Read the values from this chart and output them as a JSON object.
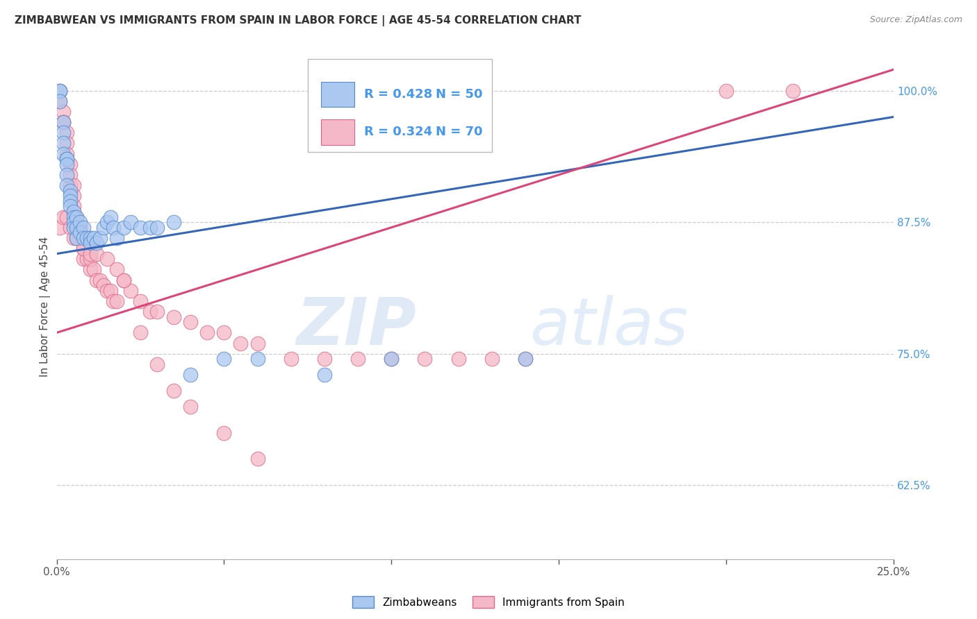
{
  "title": "ZIMBABWEAN VS IMMIGRANTS FROM SPAIN IN LABOR FORCE | AGE 45-54 CORRELATION CHART",
  "source": "Source: ZipAtlas.com",
  "ylabel": "In Labor Force | Age 45-54",
  "xlim": [
    0.0,
    0.25
  ],
  "ylim": [
    0.555,
    1.035
  ],
  "xticks": [
    0.0,
    0.05,
    0.1,
    0.15,
    0.2,
    0.25
  ],
  "yticks_right": [
    0.625,
    0.75,
    0.875,
    1.0
  ],
  "ytick_labels_right": [
    "62.5%",
    "75.0%",
    "87.5%",
    "100.0%"
  ],
  "blue_R": 0.428,
  "blue_N": 50,
  "pink_R": 0.324,
  "pink_N": 70,
  "blue_color": "#aac8f0",
  "pink_color": "#f5b8c8",
  "blue_edge_color": "#5588cc",
  "pink_edge_color": "#dd6688",
  "blue_line_color": "#3366bb",
  "pink_line_color": "#dd4477",
  "blue_x": [
    0.001,
    0.001,
    0.001,
    0.002,
    0.002,
    0.002,
    0.002,
    0.003,
    0.003,
    0.003,
    0.003,
    0.003,
    0.004,
    0.004,
    0.004,
    0.004,
    0.005,
    0.005,
    0.005,
    0.005,
    0.006,
    0.006,
    0.006,
    0.007,
    0.007,
    0.008,
    0.008,
    0.009,
    0.01,
    0.01,
    0.011,
    0.012,
    0.013,
    0.014,
    0.015,
    0.016,
    0.017,
    0.018,
    0.02,
    0.022,
    0.025,
    0.028,
    0.03,
    0.035,
    0.04,
    0.05,
    0.06,
    0.08,
    0.1,
    0.14
  ],
  "blue_y": [
    1.0,
    1.0,
    0.99,
    0.97,
    0.96,
    0.95,
    0.94,
    0.935,
    0.935,
    0.93,
    0.92,
    0.91,
    0.905,
    0.9,
    0.895,
    0.89,
    0.885,
    0.88,
    0.875,
    0.87,
    0.88,
    0.87,
    0.86,
    0.875,
    0.865,
    0.87,
    0.86,
    0.86,
    0.86,
    0.855,
    0.86,
    0.855,
    0.86,
    0.87,
    0.875,
    0.88,
    0.87,
    0.86,
    0.87,
    0.875,
    0.87,
    0.87,
    0.87,
    0.875,
    0.73,
    0.745,
    0.745,
    0.73,
    0.745,
    0.745
  ],
  "pink_x": [
    0.001,
    0.001,
    0.002,
    0.002,
    0.002,
    0.003,
    0.003,
    0.003,
    0.004,
    0.004,
    0.004,
    0.005,
    0.005,
    0.005,
    0.006,
    0.006,
    0.007,
    0.007,
    0.008,
    0.008,
    0.009,
    0.01,
    0.01,
    0.011,
    0.012,
    0.013,
    0.014,
    0.015,
    0.016,
    0.017,
    0.018,
    0.02,
    0.022,
    0.025,
    0.028,
    0.03,
    0.035,
    0.04,
    0.045,
    0.05,
    0.055,
    0.06,
    0.07,
    0.08,
    0.09,
    0.1,
    0.11,
    0.12,
    0.13,
    0.14,
    0.001,
    0.002,
    0.003,
    0.004,
    0.005,
    0.006,
    0.008,
    0.01,
    0.012,
    0.015,
    0.018,
    0.02,
    0.025,
    0.03,
    0.035,
    0.04,
    0.05,
    0.06,
    0.2,
    0.22
  ],
  "pink_y": [
    1.0,
    0.99,
    0.98,
    0.97,
    0.97,
    0.96,
    0.95,
    0.94,
    0.93,
    0.92,
    0.91,
    0.91,
    0.9,
    0.89,
    0.88,
    0.87,
    0.87,
    0.86,
    0.85,
    0.84,
    0.84,
    0.83,
    0.84,
    0.83,
    0.82,
    0.82,
    0.815,
    0.81,
    0.81,
    0.8,
    0.8,
    0.82,
    0.81,
    0.8,
    0.79,
    0.79,
    0.785,
    0.78,
    0.77,
    0.77,
    0.76,
    0.76,
    0.745,
    0.745,
    0.745,
    0.745,
    0.745,
    0.745,
    0.745,
    0.745,
    0.87,
    0.88,
    0.88,
    0.87,
    0.86,
    0.86,
    0.85,
    0.845,
    0.845,
    0.84,
    0.83,
    0.82,
    0.77,
    0.74,
    0.715,
    0.7,
    0.675,
    0.65,
    1.0,
    1.0
  ],
  "blue_trend_x": [
    0.0,
    0.25
  ],
  "blue_trend_y": [
    0.845,
    0.975
  ],
  "pink_trend_x": [
    0.0,
    0.25
  ],
  "pink_trend_y": [
    0.77,
    1.02
  ],
  "watermark_zip": "ZIP",
  "watermark_atlas": "atlas",
  "title_fontsize": 11,
  "label_fontsize": 11,
  "tick_fontsize": 11,
  "right_tick_color": "#4499ee",
  "bottom_tick_color": "#555555",
  "grid_color": "#cccccc"
}
